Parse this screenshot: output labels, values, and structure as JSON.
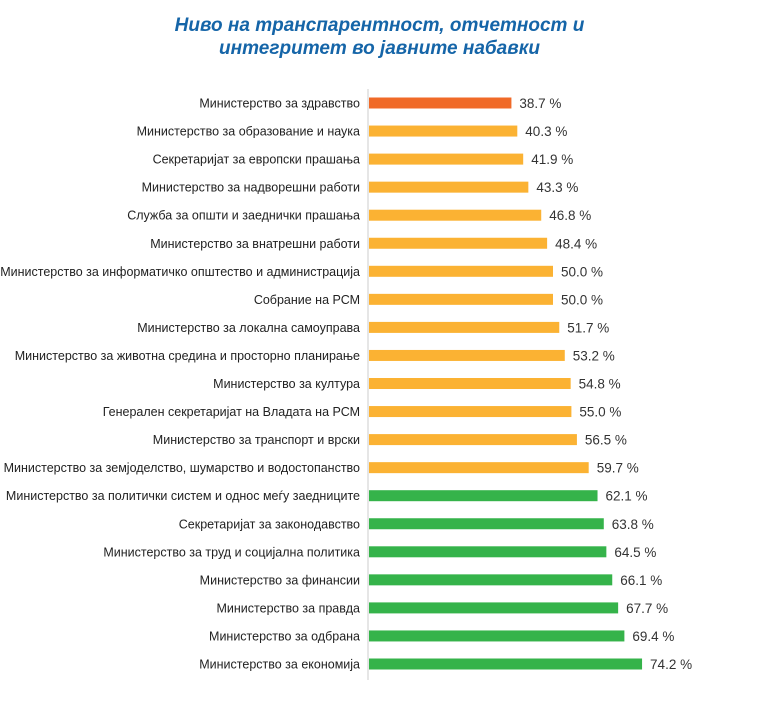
{
  "chart_data": {
    "type": "bar",
    "orientation": "horizontal",
    "title_line1": "Ниво на транспарентност, отчетност и",
    "title_line2": "интегритет во јавните набавки",
    "xlim": [
      0,
      100
    ],
    "value_suffix": " %",
    "colors": {
      "low": "#f06a28",
      "medium": "#fbb233",
      "high": "#35b34a",
      "axis": "#cccccc",
      "title": "#1565a8"
    },
    "categories": [
      "Министерство за здравство",
      "Министерство за образование и наука",
      "Секретаријат за европски прашања",
      "Министерство за надворешни работи",
      "Служба за општи и заеднички прашања",
      "Министерство за внатрешни работи",
      "Министерство за информатичко општество и администрација",
      "Собрание на РСМ",
      "Министерство за локална самоуправа",
      "Министерство за животна средина и просторно планирање",
      "Министерство за култура",
      "Генерален секретаријат на Владата на РСМ",
      "Министерство за транспорт и врски",
      "Министерство за земјоделство, шумарство и водостопанство",
      "Министерство за политички систем и однос меѓу заедниците",
      "Секретаријат за законодавство",
      "Министерство за труд и социјална политика",
      "Министерство за финансии",
      "Министерство за правда",
      "Министерство за одбрана",
      "Министерство за економија"
    ],
    "values": [
      38.7,
      40.3,
      41.9,
      43.3,
      46.8,
      48.4,
      50.0,
      50.0,
      51.7,
      53.2,
      54.8,
      55.0,
      56.5,
      59.7,
      62.1,
      63.8,
      64.5,
      66.1,
      67.7,
      69.4,
      74.2
    ],
    "value_labels": [
      "38.7 %",
      "40.3 %",
      "41.9 %",
      "43.3 %",
      "46.8 %",
      "48.4 %",
      "50.0 %",
      "50.0 %",
      "51.7 %",
      "53.2 %",
      "54.8 %",
      "55.0 %",
      "56.5 %",
      "59.7 %",
      "62.1 %",
      "63.8 %",
      "64.5 %",
      "66.1 %",
      "67.7 %",
      "69.4 %",
      "74.2 %"
    ],
    "bar_levels": [
      "low",
      "medium",
      "medium",
      "medium",
      "medium",
      "medium",
      "medium",
      "medium",
      "medium",
      "medium",
      "medium",
      "medium",
      "medium",
      "medium",
      "high",
      "high",
      "high",
      "high",
      "high",
      "high",
      "high"
    ]
  }
}
